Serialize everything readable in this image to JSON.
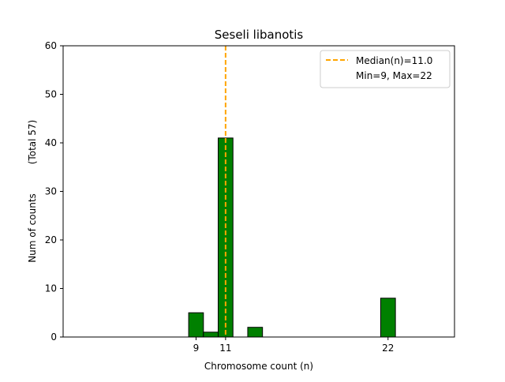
{
  "chart_data": {
    "type": "bar",
    "title": "Seseli libanotis",
    "xlabel": "Chromosome count (n)",
    "ylabel": "Num of counts",
    "ylabel_note": "(Total 57)",
    "xlim": [
      0,
      26.5
    ],
    "ylim": [
      0,
      60
    ],
    "yticks": [
      0,
      10,
      20,
      30,
      40,
      50,
      60
    ],
    "xticks": [
      9,
      11,
      22
    ],
    "bar_color": "#008000",
    "bar_edge_color": "#000000",
    "bar_width": 1,
    "bars": [
      {
        "x": 9,
        "value": 5
      },
      {
        "x": 10,
        "value": 1
      },
      {
        "x": 11,
        "value": 41
      },
      {
        "x": 13,
        "value": 2
      },
      {
        "x": 22,
        "value": 8
      }
    ],
    "median_line": {
      "x": 11,
      "color": "#FFA500",
      "style": "dashed"
    },
    "legend": {
      "placement": "top-right",
      "entries": [
        "Median(n)=11.0",
        "Min=9, Max=22"
      ]
    },
    "grid": false
  }
}
